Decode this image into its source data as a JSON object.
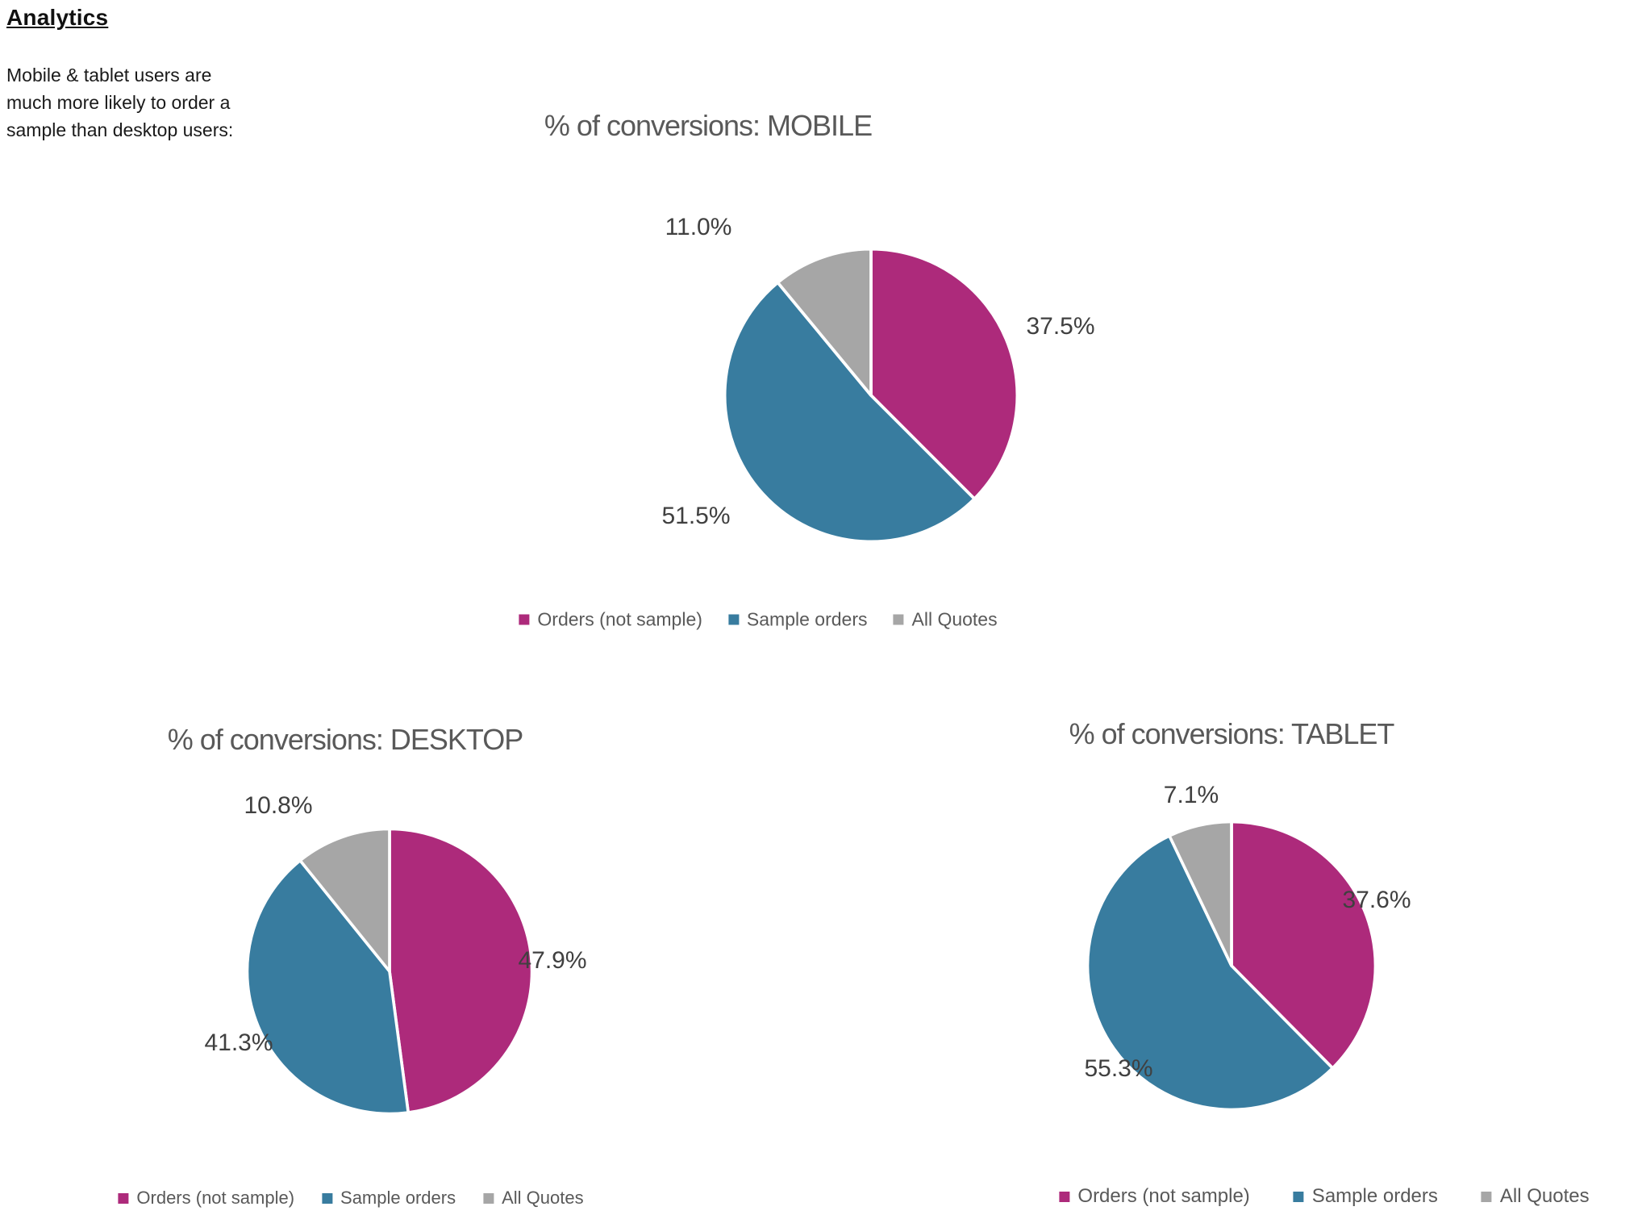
{
  "page": {
    "heading": "Analytics",
    "intro_lines": [
      "Mobile & tablet users are",
      "much more likely to order a",
      "sample than desktop users:"
    ]
  },
  "colors": {
    "slice_colors": [
      "#AD2A7B",
      "#387C9F",
      "#A6A6A6"
    ],
    "chart_text": "#595959",
    "data_label_text": "#404040"
  },
  "chart_data": [
    {
      "id": "mobile",
      "type": "pie",
      "title": "% of conversions: MOBILE",
      "categories": [
        "Orders (not sample)",
        "Sample orders",
        "All Quotes"
      ],
      "values": [
        37.5,
        51.5,
        11.0
      ],
      "value_labels": [
        "37.5%",
        "51.5%",
        "11.0%"
      ],
      "start_angle_deg": 0,
      "direction": "clockwise",
      "legend_position": "bottom"
    },
    {
      "id": "desktop",
      "type": "pie",
      "title": "% of conversions: DESKTOP",
      "categories": [
        "Orders (not sample)",
        "Sample orders",
        "All Quotes"
      ],
      "values": [
        47.9,
        41.3,
        10.8
      ],
      "value_labels": [
        "47.9%",
        "41.3%",
        "10.8%"
      ],
      "start_angle_deg": 0,
      "direction": "clockwise",
      "legend_position": "bottom"
    },
    {
      "id": "tablet",
      "type": "pie",
      "title": "% of conversions: TABLET",
      "categories": [
        "Orders (not sample)",
        "Sample orders",
        "All Quotes"
      ],
      "values": [
        37.6,
        55.3,
        7.1
      ],
      "value_labels": [
        "37.6%",
        "55.3%",
        "7.1%"
      ],
      "start_angle_deg": 0,
      "direction": "clockwise",
      "legend_position": "bottom"
    }
  ]
}
